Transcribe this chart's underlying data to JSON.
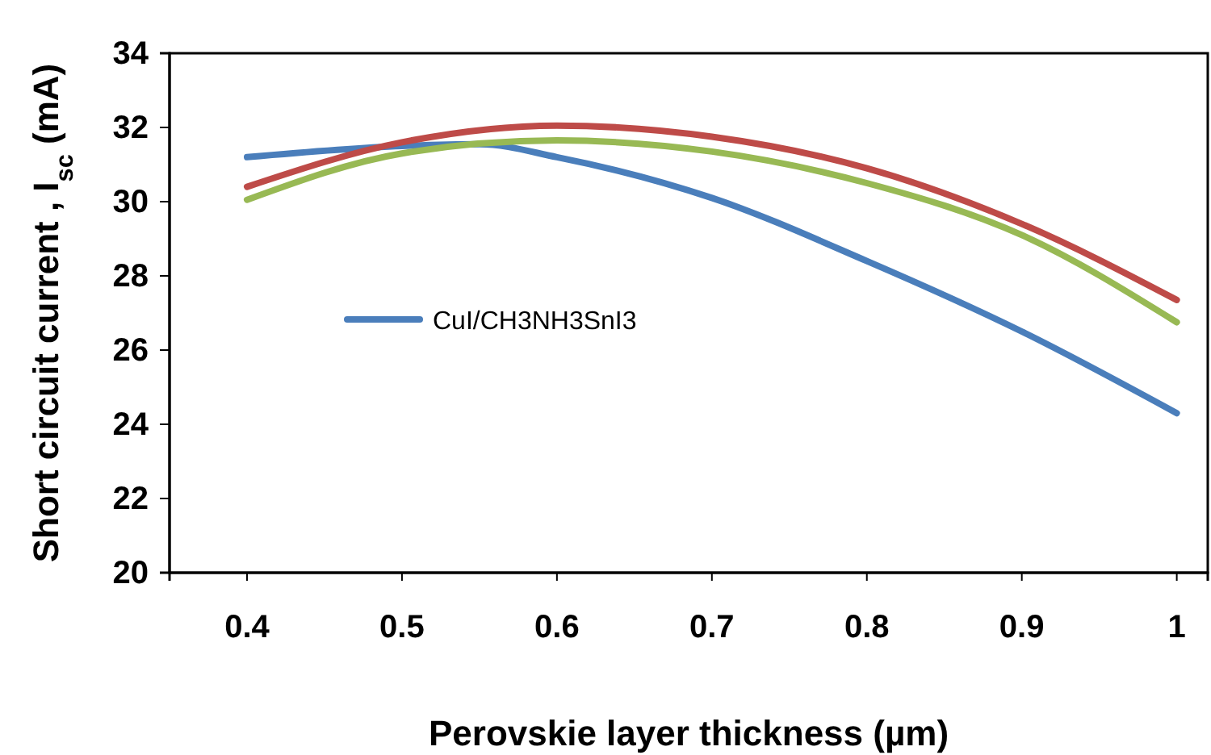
{
  "chart_data": {
    "type": "line",
    "xlabel": "Perovskie layer thickness (µm)",
    "ylabel": "Short circuit current , I$_{sc}$ (mA)",
    "xlim": [
      0.35,
      1.02
    ],
    "xticks": [
      0.4,
      0.5,
      0.6,
      0.7,
      0.8,
      0.9,
      1
    ],
    "ylim": [
      20,
      34
    ],
    "yticks": [
      20,
      22,
      24,
      26,
      28,
      30,
      32,
      34
    ],
    "grid": false,
    "legend": "left",
    "marker": "none",
    "line_style": "solid",
    "series": [
      {
        "name": "CuI/CH3NH3SnI3",
        "color": "#4a7ebb",
        "x": [
          0.4,
          0.5,
          0.55,
          0.6,
          0.7,
          0.8,
          0.9,
          1
        ],
        "values": [
          31.2,
          31.5,
          31.55,
          31.2,
          30.1,
          28.4,
          26.5,
          24.3
        ]
      },
      {
        "color": "#be4b48",
        "x": [
          0.4,
          0.5,
          0.6,
          0.7,
          0.8,
          0.9,
          1
        ],
        "values": [
          30.4,
          31.6,
          32.05,
          31.75,
          30.9,
          29.4,
          27.35
        ]
      },
      {
        "color": "#98b954",
        "x": [
          0.4,
          0.5,
          0.6,
          0.7,
          0.8,
          0.9,
          1
        ],
        "values": [
          30.05,
          31.3,
          31.65,
          31.35,
          30.5,
          29.1,
          26.75
        ]
      }
    ]
  }
}
